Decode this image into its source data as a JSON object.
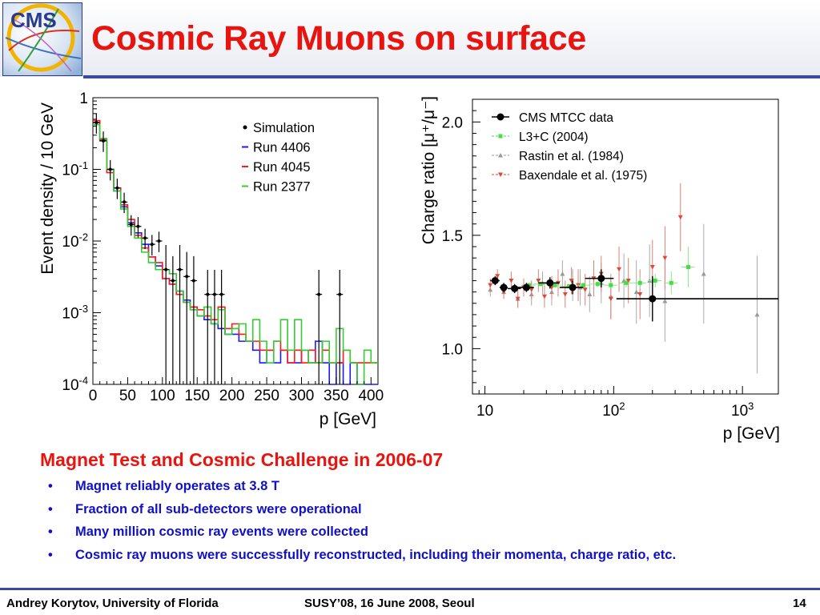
{
  "header": {
    "logo_text": "CMS",
    "title": "Cosmic Ray Muons on surface"
  },
  "chart_data": [
    {
      "type": "line",
      "xlabel": "p  [GeV]",
      "ylabel": "Event density / 10 GeV",
      "xlim": [
        0,
        410
      ],
      "ylim": [
        0.0001,
        1
      ],
      "yscale": "log",
      "x_ticks": [
        "0",
        "50",
        "100",
        "150",
        "200",
        "250",
        "300",
        "350",
        "400"
      ],
      "y_ticks": [
        {
          "base": "1",
          "exp": ""
        },
        {
          "base": "10",
          "exp": "-1"
        },
        {
          "base": "10",
          "exp": "-2"
        },
        {
          "base": "10",
          "exp": "-3"
        },
        {
          "base": "10",
          "exp": "-4"
        }
      ],
      "legend_position": "top-right",
      "legend": [
        {
          "label": "Simulation",
          "marker": "dot",
          "color": "#000000"
        },
        {
          "label": "Run 4406",
          "marker": "dash",
          "color": "#1a1aff"
        },
        {
          "label": "Run 4045",
          "marker": "dash",
          "color": "#ff1a1a"
        },
        {
          "label": "Run 2377",
          "marker": "dash",
          "color": "#33cc33"
        }
      ],
      "series": [
        {
          "name": "Simulation",
          "style": "points",
          "color": "#000000",
          "x": [
            5,
            15,
            25,
            35,
            45,
            55,
            65,
            75,
            85,
            95,
            105,
            115,
            125,
            135,
            145,
            165,
            175,
            185,
            325,
            355
          ],
          "y": [
            0.45,
            0.25,
            0.1,
            0.055,
            0.035,
            0.017,
            0.016,
            0.011,
            0.009,
            0.01,
            0.004,
            0.0028,
            0.004,
            0.0032,
            0.0028,
            0.0018,
            0.0018,
            0.0018,
            0.0018,
            0.0018
          ]
        },
        {
          "name": "Run 4406",
          "style": "step",
          "color": "#1a1aff",
          "x": [
            0,
            10,
            20,
            30,
            40,
            50,
            60,
            70,
            80,
            90,
            100,
            110,
            120,
            130,
            140,
            150,
            160,
            170,
            180,
            190,
            200,
            210,
            220,
            230,
            240,
            250,
            260,
            270,
            280,
            290,
            300,
            310,
            320,
            330,
            340,
            350,
            360,
            370,
            380,
            390,
            400
          ],
          "y": [
            0.45,
            0.25,
            0.1,
            0.05,
            0.03,
            0.018,
            0.013,
            0.009,
            0.006,
            0.0045,
            0.003,
            0.0025,
            0.002,
            0.0015,
            0.0012,
            0.0009,
            0.0008,
            0.0007,
            0.0006,
            0.0005,
            0.0005,
            0.0004,
            0.0004,
            0.0003,
            0.0002,
            0.0003,
            0.0002,
            0.0003,
            0.0002,
            0.0002,
            0.0003,
            0.0002,
            0.0004,
            0.0002,
            0.0001,
            0.0002,
            0.0001,
            0.0002,
            0.0001,
            0.0001,
            0.0001
          ]
        },
        {
          "name": "Run 4045",
          "style": "step",
          "color": "#ff1a1a",
          "x": [
            0,
            10,
            20,
            30,
            40,
            50,
            60,
            70,
            80,
            90,
            100,
            110,
            120,
            130,
            140,
            150,
            160,
            170,
            180,
            190,
            200,
            210,
            220,
            230,
            240,
            250,
            260,
            270,
            280,
            290,
            300,
            310,
            320,
            330,
            340,
            350,
            360,
            370,
            380,
            390,
            400
          ],
          "y": [
            0.48,
            0.26,
            0.09,
            0.055,
            0.032,
            0.02,
            0.012,
            0.008,
            0.006,
            0.005,
            0.003,
            0.0025,
            0.0018,
            0.0014,
            0.0012,
            0.0011,
            0.0009,
            0.0008,
            0.0012,
            0.0006,
            0.0007,
            0.0005,
            0.0004,
            0.0004,
            0.0003,
            0.0003,
            0.0004,
            0.0003,
            0.0002,
            0.0003,
            0.0002,
            0.0003,
            0.0002,
            0.0003,
            0.0002,
            0.0002,
            0.0003,
            0.0002,
            0.0002,
            0.0002,
            0.0002
          ]
        },
        {
          "name": "Run 2377",
          "style": "step",
          "color": "#33cc33",
          "x": [
            0,
            10,
            20,
            30,
            40,
            50,
            60,
            70,
            80,
            90,
            100,
            110,
            120,
            130,
            140,
            150,
            160,
            170,
            180,
            190,
            200,
            210,
            220,
            230,
            240,
            250,
            260,
            270,
            280,
            290,
            300,
            310,
            320,
            330,
            340,
            350,
            360,
            370,
            380,
            390,
            400
          ],
          "y": [
            0.42,
            0.27,
            0.1,
            0.05,
            0.028,
            0.016,
            0.011,
            0.007,
            0.005,
            0.004,
            0.004,
            0.0035,
            0.002,
            0.0014,
            0.0011,
            0.0009,
            0.0012,
            0.0007,
            0.0011,
            0.0005,
            0.0006,
            0.0007,
            0.0004,
            0.0008,
            0.0004,
            0.0002,
            0.0004,
            0.0008,
            0.0003,
            0.0008,
            0.0003,
            0.0002,
            0.0002,
            0.0004,
            0.0002,
            0.0006,
            0.0003,
            0.0002,
            0.0001,
            0.0003,
            0.0002
          ]
        }
      ]
    },
    {
      "type": "scatter",
      "xlabel": "p  [GeV]",
      "ylabel": "Charge ratio [μ⁺/μ⁻]",
      "xlim": [
        8,
        1900
      ],
      "ylim": [
        0.8,
        2.1
      ],
      "xscale": "log",
      "x_ticks": [
        {
          "base": "10",
          "exp": ""
        },
        {
          "base": "10",
          "exp": "2"
        },
        {
          "base": "10",
          "exp": "3"
        }
      ],
      "y_ticks": [
        "2.0",
        "1.5",
        "1.0"
      ],
      "legend_position": "top-left",
      "legend": [
        {
          "label": "CMS MTCC data",
          "marker": "circle",
          "color": "#000000"
        },
        {
          "label": "L3+C (2004)",
          "marker": "square",
          "color": "#44dd44"
        },
        {
          "label": "Rastin et al. (1984)",
          "marker": "triangle-up",
          "color": "#999999"
        },
        {
          "label": "Baxendale et al. (1975)",
          "marker": "triangle-down",
          "color": "#d94a3a"
        }
      ],
      "series": [
        {
          "name": "CMS MTCC data",
          "color": "#000000",
          "x": [
            12,
            14,
            17,
            21,
            32,
            48,
            80,
            200
          ],
          "y": [
            1.3,
            1.27,
            1.265,
            1.27,
            1.29,
            1.27,
            1.31,
            1.22
          ],
          "xerr_low": [
            1,
            1,
            2,
            3,
            6,
            10,
            20,
            95
          ],
          "xerr_high": [
            1,
            1,
            2,
            3,
            6,
            10,
            20,
            1700
          ],
          "yerr": [
            0.02,
            0.02,
            0.02,
            0.02,
            0.025,
            0.03,
            0.04,
            0.1
          ]
        },
        {
          "name": "L3+C (2004)",
          "color": "#44dd44",
          "x": [
            22,
            27,
            35,
            45,
            58,
            75,
            95,
            125,
            160,
            210,
            280,
            380
          ],
          "y": [
            1.28,
            1.285,
            1.28,
            1.275,
            1.28,
            1.285,
            1.28,
            1.29,
            1.29,
            1.3,
            1.29,
            1.36
          ],
          "yerr": [
            0.01,
            0.01,
            0.01,
            0.01,
            0.012,
            0.012,
            0.015,
            0.02,
            0.025,
            0.03,
            0.05,
            0.09
          ]
        },
        {
          "name": "Rastin et al. (1984)",
          "color": "#999999",
          "x": [
            11,
            14,
            18,
            23,
            28,
            33,
            40,
            48,
            55,
            65,
            80,
            95,
            120,
            150,
            190,
            250,
            500,
            1300
          ],
          "y": [
            1.26,
            1.25,
            1.22,
            1.24,
            1.29,
            1.25,
            1.33,
            1.28,
            1.27,
            1.24,
            1.29,
            1.23,
            1.3,
            1.25,
            1.3,
            1.21,
            1.33,
            1.15
          ],
          "yerr": [
            0.03,
            0.03,
            0.04,
            0.05,
            0.05,
            0.06,
            0.06,
            0.07,
            0.08,
            0.08,
            0.09,
            0.1,
            0.12,
            0.14,
            0.16,
            0.18,
            0.22,
            0.26
          ]
        },
        {
          "name": "Baxendale et al. (1975)",
          "color": "#d94a3a",
          "x": [
            11,
            12.5,
            14,
            16,
            18,
            20,
            23,
            26,
            29,
            33,
            37,
            42,
            47,
            53,
            60,
            70,
            80,
            95,
            110,
            130,
            160,
            200,
            250,
            330
          ],
          "y": [
            1.28,
            1.32,
            1.25,
            1.3,
            1.22,
            1.27,
            1.26,
            1.3,
            1.23,
            1.27,
            1.29,
            1.24,
            1.3,
            1.28,
            1.26,
            1.31,
            1.33,
            1.22,
            1.35,
            1.3,
            1.24,
            1.36,
            1.4,
            1.58
          ],
          "yerr": [
            0.03,
            0.03,
            0.03,
            0.04,
            0.04,
            0.04,
            0.04,
            0.05,
            0.05,
            0.05,
            0.06,
            0.06,
            0.06,
            0.07,
            0.07,
            0.08,
            0.08,
            0.09,
            0.1,
            0.1,
            0.11,
            0.12,
            0.14,
            0.15
          ]
        }
      ]
    }
  ],
  "main": {
    "subheading": "Magnet Test and Cosmic Challenge in 2006-07",
    "bullet_symbol": "•",
    "bullets": [
      "Magnet reliably operates at 3.8 T",
      "Fraction of all sub-detectors were operational",
      "Many million cosmic ray events were collected",
      "Cosmic ray muons were successfully reconstructed, including their momenta, charge ratio, etc."
    ]
  },
  "footer": {
    "author": "Andrey Korytov, University of Florida",
    "event": "SUSY’08, 16 June 2008, Seoul",
    "page": "14"
  },
  "colors": {
    "title": "#e8140f",
    "bullet_text": "#1010c8",
    "rule": "#3a4aa0"
  }
}
